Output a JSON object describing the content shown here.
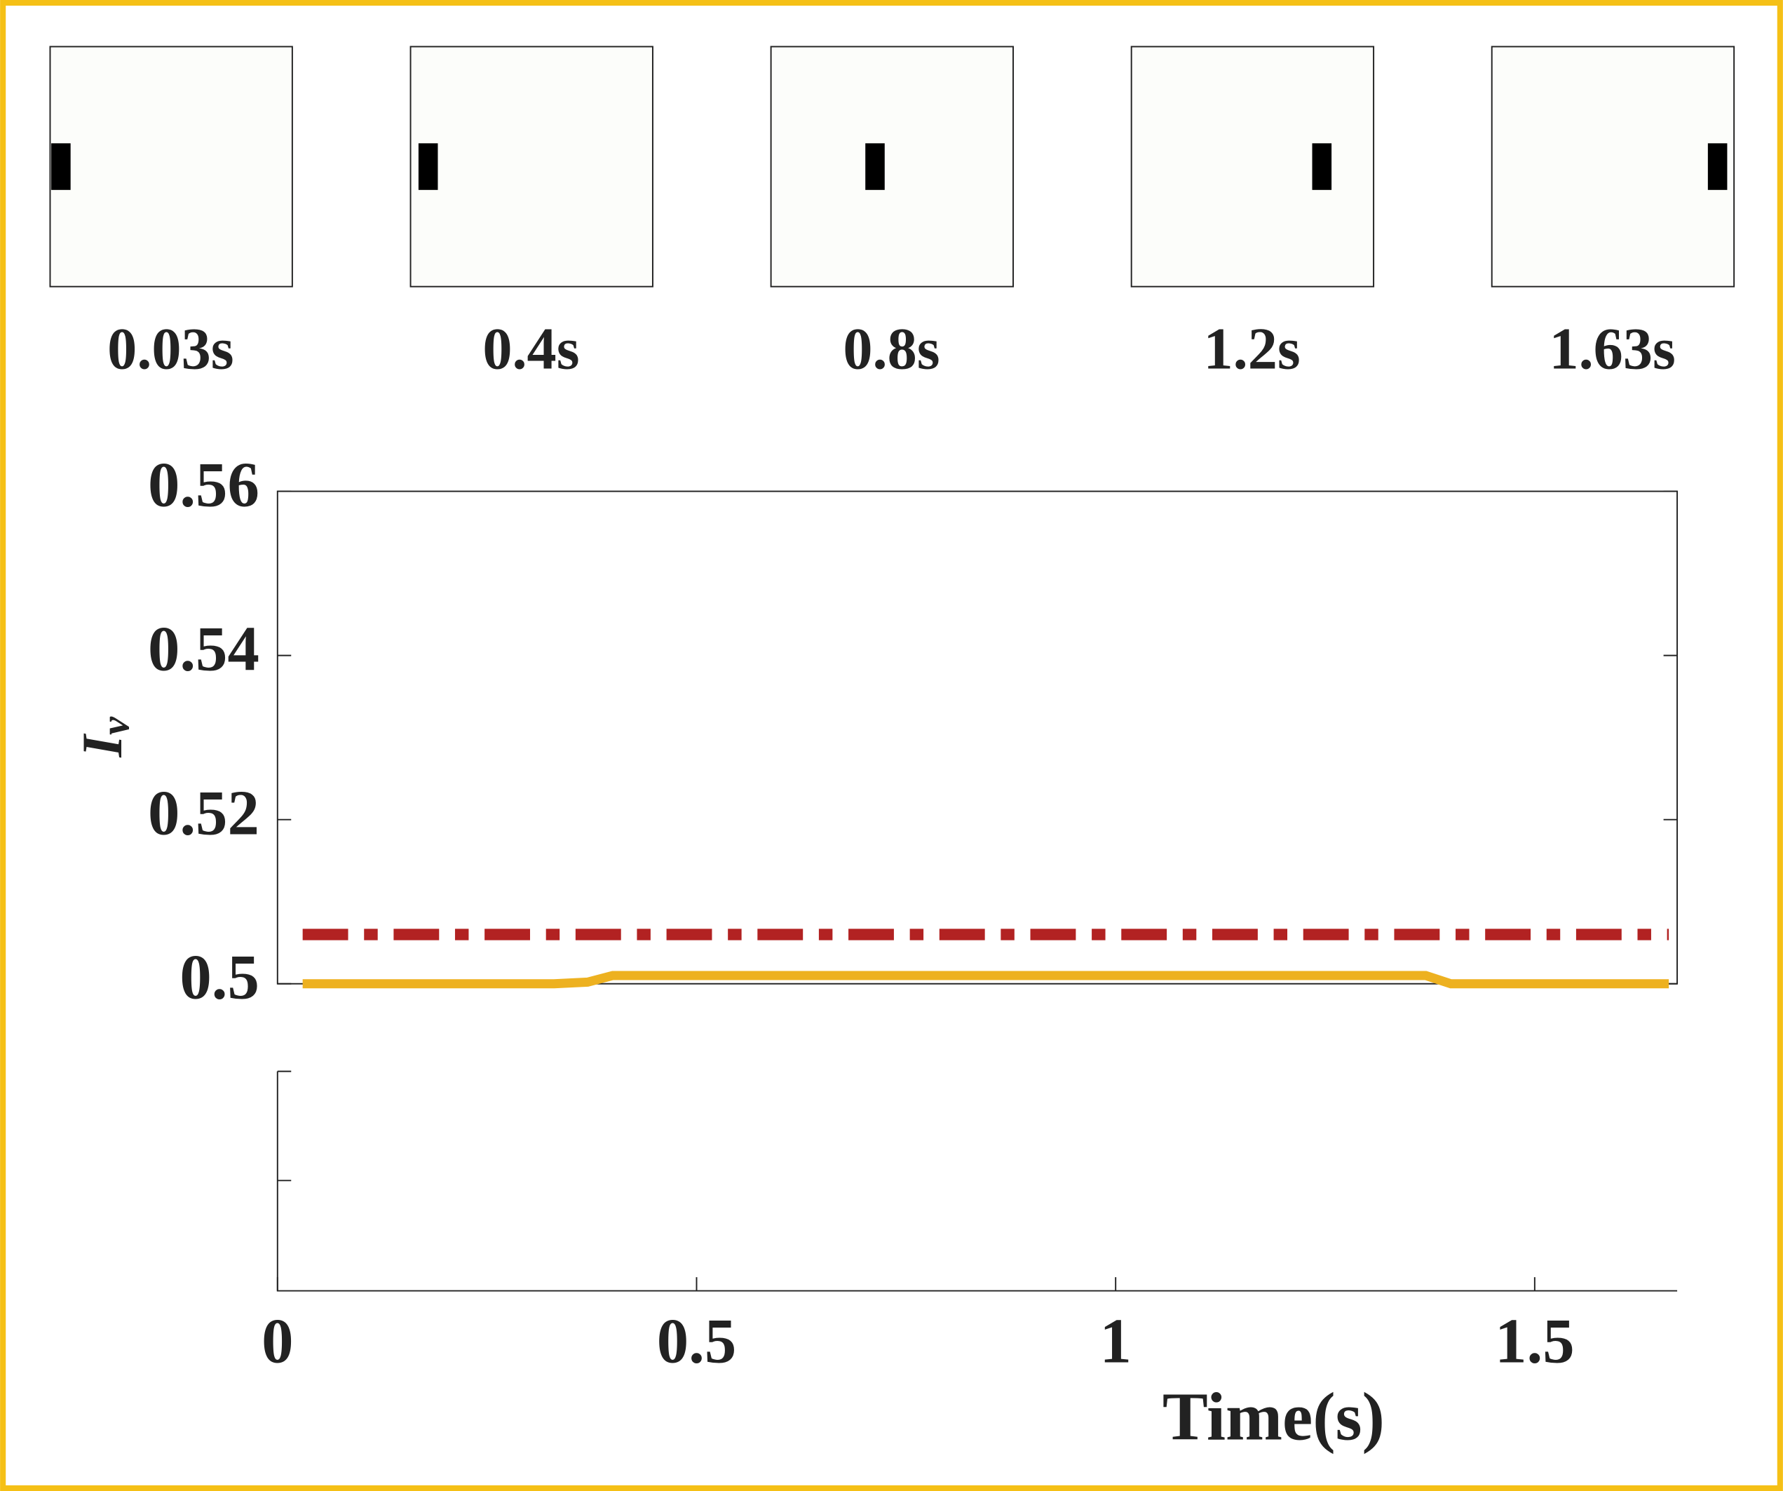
{
  "frames": [
    {
      "label": "0.03s"
    },
    {
      "label": "0.4s"
    },
    {
      "label": "0.8s"
    },
    {
      "label": "1.2s"
    },
    {
      "label": "1.63s"
    }
  ],
  "chart_data": {
    "type": "line",
    "x_label": "Time(s)",
    "y_label": "I",
    "y_label_sub": "v",
    "xlim": [
      0,
      1.67
    ],
    "xticks": [
      0,
      0.5,
      1,
      1.5
    ],
    "ylim": [
      0.5,
      0.56
    ],
    "yticks": [
      0.5,
      0.52,
      0.54,
      0.56
    ],
    "series": [
      {
        "color": "#b22222",
        "style": "dashdot",
        "x": [
          0.03,
          1.66
        ],
        "values": [
          0.506,
          0.506
        ]
      },
      {
        "color": "#edb120",
        "style": "solid",
        "x": [
          0.03,
          0.33,
          0.37,
          0.4,
          1.37,
          1.4,
          1.66
        ],
        "values": [
          0.5,
          0.5,
          0.5002,
          0.501,
          0.501,
          0.5,
          0.5
        ]
      }
    ]
  }
}
